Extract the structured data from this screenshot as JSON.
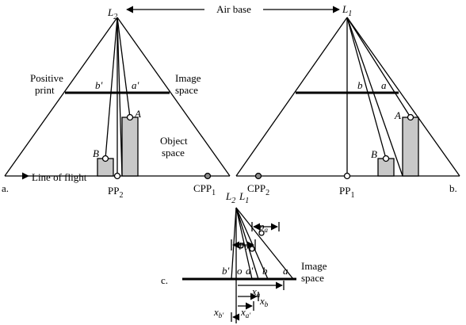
{
  "panel_a": {
    "panel_letter": "a.",
    "camera_station": {
      "base": "L",
      "sub": "2"
    },
    "positive_print_label_line1": "Positive",
    "positive_print_label_line2": "print",
    "image_space_label_line1": "Image",
    "image_space_label_line2": "space",
    "object_space_label_line1": "Object",
    "object_space_label_line2": "space",
    "line_of_flight_label": "Line of flight",
    "image_point_b": "b'",
    "image_point_a": "a'",
    "object_A": "A",
    "object_B": "B",
    "principal_point": {
      "base": "PP",
      "sub": "2"
    },
    "conjugate_principal_point": {
      "base": "CPP",
      "sub": "1"
    }
  },
  "air_base_label": "Air base",
  "panel_b": {
    "panel_letter": "b.",
    "camera_station": {
      "base": "L",
      "sub": "1"
    },
    "image_point_b": "b",
    "image_point_a": "a",
    "object_A": "A",
    "object_B": "B",
    "principal_point": {
      "base": "PP",
      "sub": "1"
    },
    "conjugate_principal_point": {
      "base": "CPP",
      "sub": "2"
    }
  },
  "panel_c": {
    "panel_letter": "c.",
    "station_L2": {
      "base": "L",
      "sub": "2"
    },
    "station_L1": {
      "base": "L",
      "sub": "1"
    },
    "image_space_label_line1": "Image",
    "image_space_label_line2": "space",
    "point_labels": [
      "b'",
      "o",
      "a'",
      "b",
      "a"
    ],
    "parallax_a": {
      "base": "p",
      "sub": "a"
    },
    "parallax_b": {
      "base": "p",
      "sub": "b"
    },
    "x_a": {
      "base": "x",
      "sub": "a"
    },
    "x_b": {
      "base": "x",
      "sub": "b"
    },
    "x_a_prime": {
      "base": "x",
      "sub": "a'"
    },
    "x_b_prime": {
      "base": "x",
      "sub": "b'"
    }
  }
}
